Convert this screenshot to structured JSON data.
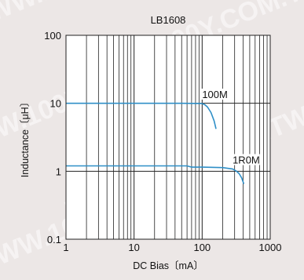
{
  "watermark": "WWW.100Y.COM.TW",
  "chart_data": {
    "type": "line",
    "title": "LB1608",
    "xlabel": "DC Bias〔mA〕",
    "ylabel": "Inductance〔μH〕",
    "xscale": "log",
    "yscale": "log",
    "xlim": [
      1,
      1000
    ],
    "ylim": [
      0.1,
      100
    ],
    "grid": true,
    "x_tick_labels": [
      "1",
      "10",
      "100",
      "1000"
    ],
    "y_tick_labels": [
      "0.1",
      "1",
      "10",
      "100"
    ],
    "series_color": "#2f8fc7",
    "series": [
      {
        "name": "100M",
        "x": [
          1,
          10,
          50,
          100,
          110,
          120,
          135,
          150,
          160
        ],
        "y": [
          10,
          10,
          10,
          9.9,
          9.5,
          8.8,
          7.3,
          5.5,
          4.2
        ]
      },
      {
        "name": "1R0M",
        "x": [
          1,
          10,
          60,
          70,
          100,
          200,
          280,
          320,
          350,
          380,
          410
        ],
        "y": [
          1.2,
          1.2,
          1.2,
          1.15,
          1.15,
          1.13,
          1.08,
          1.0,
          0.92,
          0.8,
          0.65
        ]
      }
    ]
  }
}
